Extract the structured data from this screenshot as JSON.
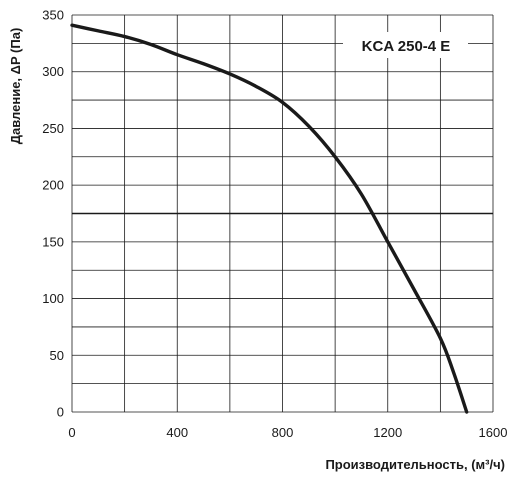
{
  "chart_data": {
    "type": "line",
    "title": "",
    "annotation": "KCA 250-4 E",
    "xlabel": "Производительность, (м³/ч)",
    "ylabel": "Давление, ΔP (Па)",
    "xlim": [
      0,
      1600
    ],
    "ylim": [
      0,
      350
    ],
    "x_ticks": [
      0,
      400,
      800,
      1200,
      1600
    ],
    "y_ticks": [
      0,
      50,
      100,
      150,
      200,
      250,
      300,
      350
    ],
    "x_minor_grid_step": 200,
    "y_minor_grid_step": 25,
    "grid": true,
    "reference_line": {
      "y": 175
    },
    "series": [
      {
        "color": "#1a1a1a",
        "x": [
          0,
          100,
          200,
          300,
          400,
          500,
          600,
          700,
          800,
          900,
          1000,
          1100,
          1200,
          1300,
          1400,
          1450,
          1500
        ],
        "y": [
          341,
          336,
          331,
          324,
          315,
          307,
          298,
          287,
          273,
          252,
          225,
          192,
          150,
          108,
          65,
          35,
          0
        ]
      }
    ]
  }
}
